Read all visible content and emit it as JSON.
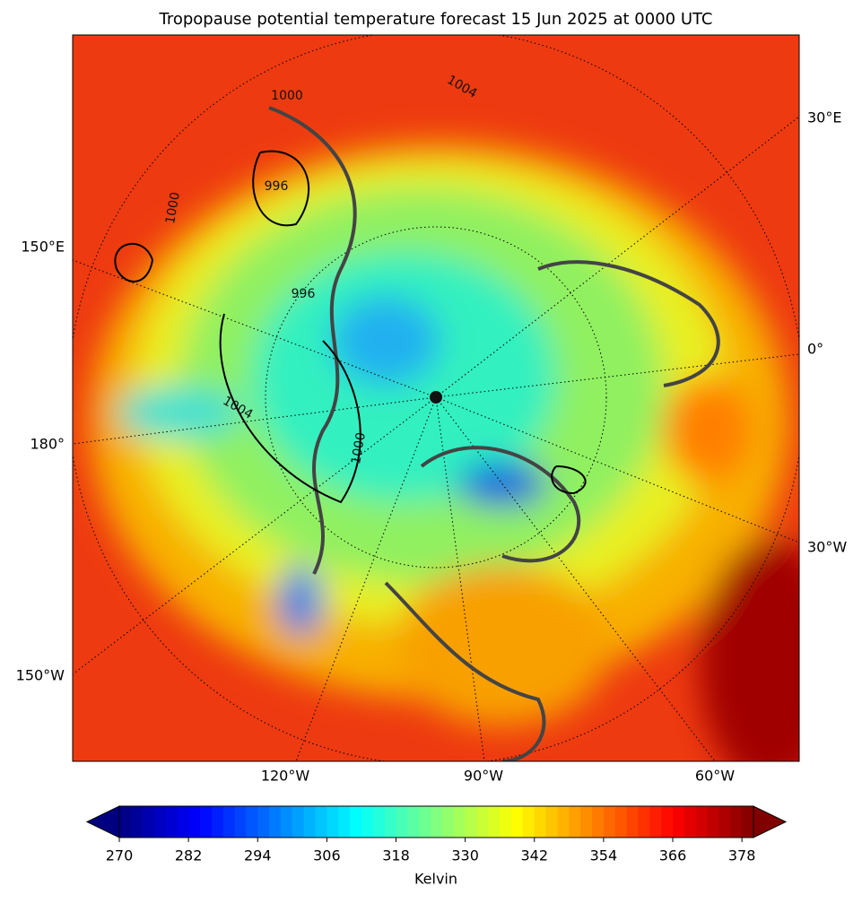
{
  "title": "Tropopause potential temperature forecast 15 Jun 2025 at 0000 UTC",
  "map": {
    "side_labels": [
      "30°E",
      "150°E",
      "0°",
      "180°",
      "30°W",
      "150°W"
    ],
    "bottom_labels": [
      "120°W",
      "90°W",
      "60°W"
    ],
    "contour_labels": [
      "1000",
      "1004",
      "996",
      "1000",
      "996",
      "1004",
      "1000"
    ]
  },
  "colorbar": {
    "label": "Kelvin",
    "colormap": "jet",
    "range": [
      270,
      380
    ],
    "step": 2,
    "ticks": [
      270,
      282,
      294,
      306,
      318,
      330,
      342,
      354,
      366,
      378
    ]
  }
}
